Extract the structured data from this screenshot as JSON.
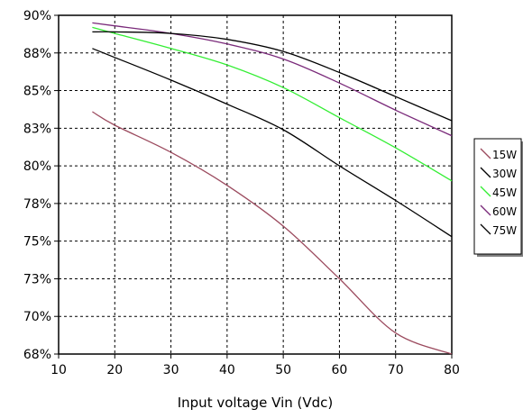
{
  "chart_data": {
    "type": "line",
    "xlabel": "Input voltage Vin (Vdc)",
    "ylabel": "",
    "xlim": [
      10,
      80
    ],
    "ylim": [
      67.5,
      90
    ],
    "xticks": [
      10,
      20,
      30,
      40,
      50,
      60,
      70,
      80
    ],
    "yticks": [
      67.5,
      70,
      72.5,
      75,
      77.5,
      80,
      82.5,
      85,
      87.5,
      90
    ],
    "ytick_labels": [
      "68%",
      "70%",
      "73%",
      "75%",
      "78%",
      "80%",
      "83%",
      "85%",
      "88%",
      "90%"
    ],
    "grid": true,
    "legend_position": "right",
    "series": [
      {
        "name": "15W",
        "color": "#9b4a5e",
        "x": [
          16,
          20,
          30,
          40,
          50,
          60,
          70,
          80
        ],
        "y": [
          83.6,
          82.7,
          80.9,
          78.7,
          76.0,
          72.5,
          68.9,
          67.5
        ]
      },
      {
        "name": "30W",
        "color": "#000000",
        "x": [
          16,
          20,
          30,
          40,
          50,
          60,
          70,
          80
        ],
        "y": [
          87.8,
          87.2,
          85.7,
          84.1,
          82.4,
          80.0,
          77.7,
          75.3
        ]
      },
      {
        "name": "45W",
        "color": "#33ee33",
        "x": [
          16,
          20,
          30,
          40,
          50,
          60,
          70,
          80
        ],
        "y": [
          89.2,
          88.8,
          87.8,
          86.7,
          85.2,
          83.2,
          81.2,
          79.0
        ]
      },
      {
        "name": "60W",
        "color": "#7a2a7a",
        "x": [
          16,
          20,
          30,
          40,
          50,
          60,
          70,
          80
        ],
        "y": [
          89.5,
          89.3,
          88.8,
          88.1,
          87.1,
          85.5,
          83.7,
          82.0
        ]
      },
      {
        "name": "75W",
        "color": "#000000",
        "x": [
          16,
          20,
          30,
          40,
          50,
          60,
          70,
          80
        ],
        "y": [
          88.9,
          88.9,
          88.8,
          88.4,
          87.6,
          86.2,
          84.6,
          83.0
        ]
      }
    ]
  }
}
